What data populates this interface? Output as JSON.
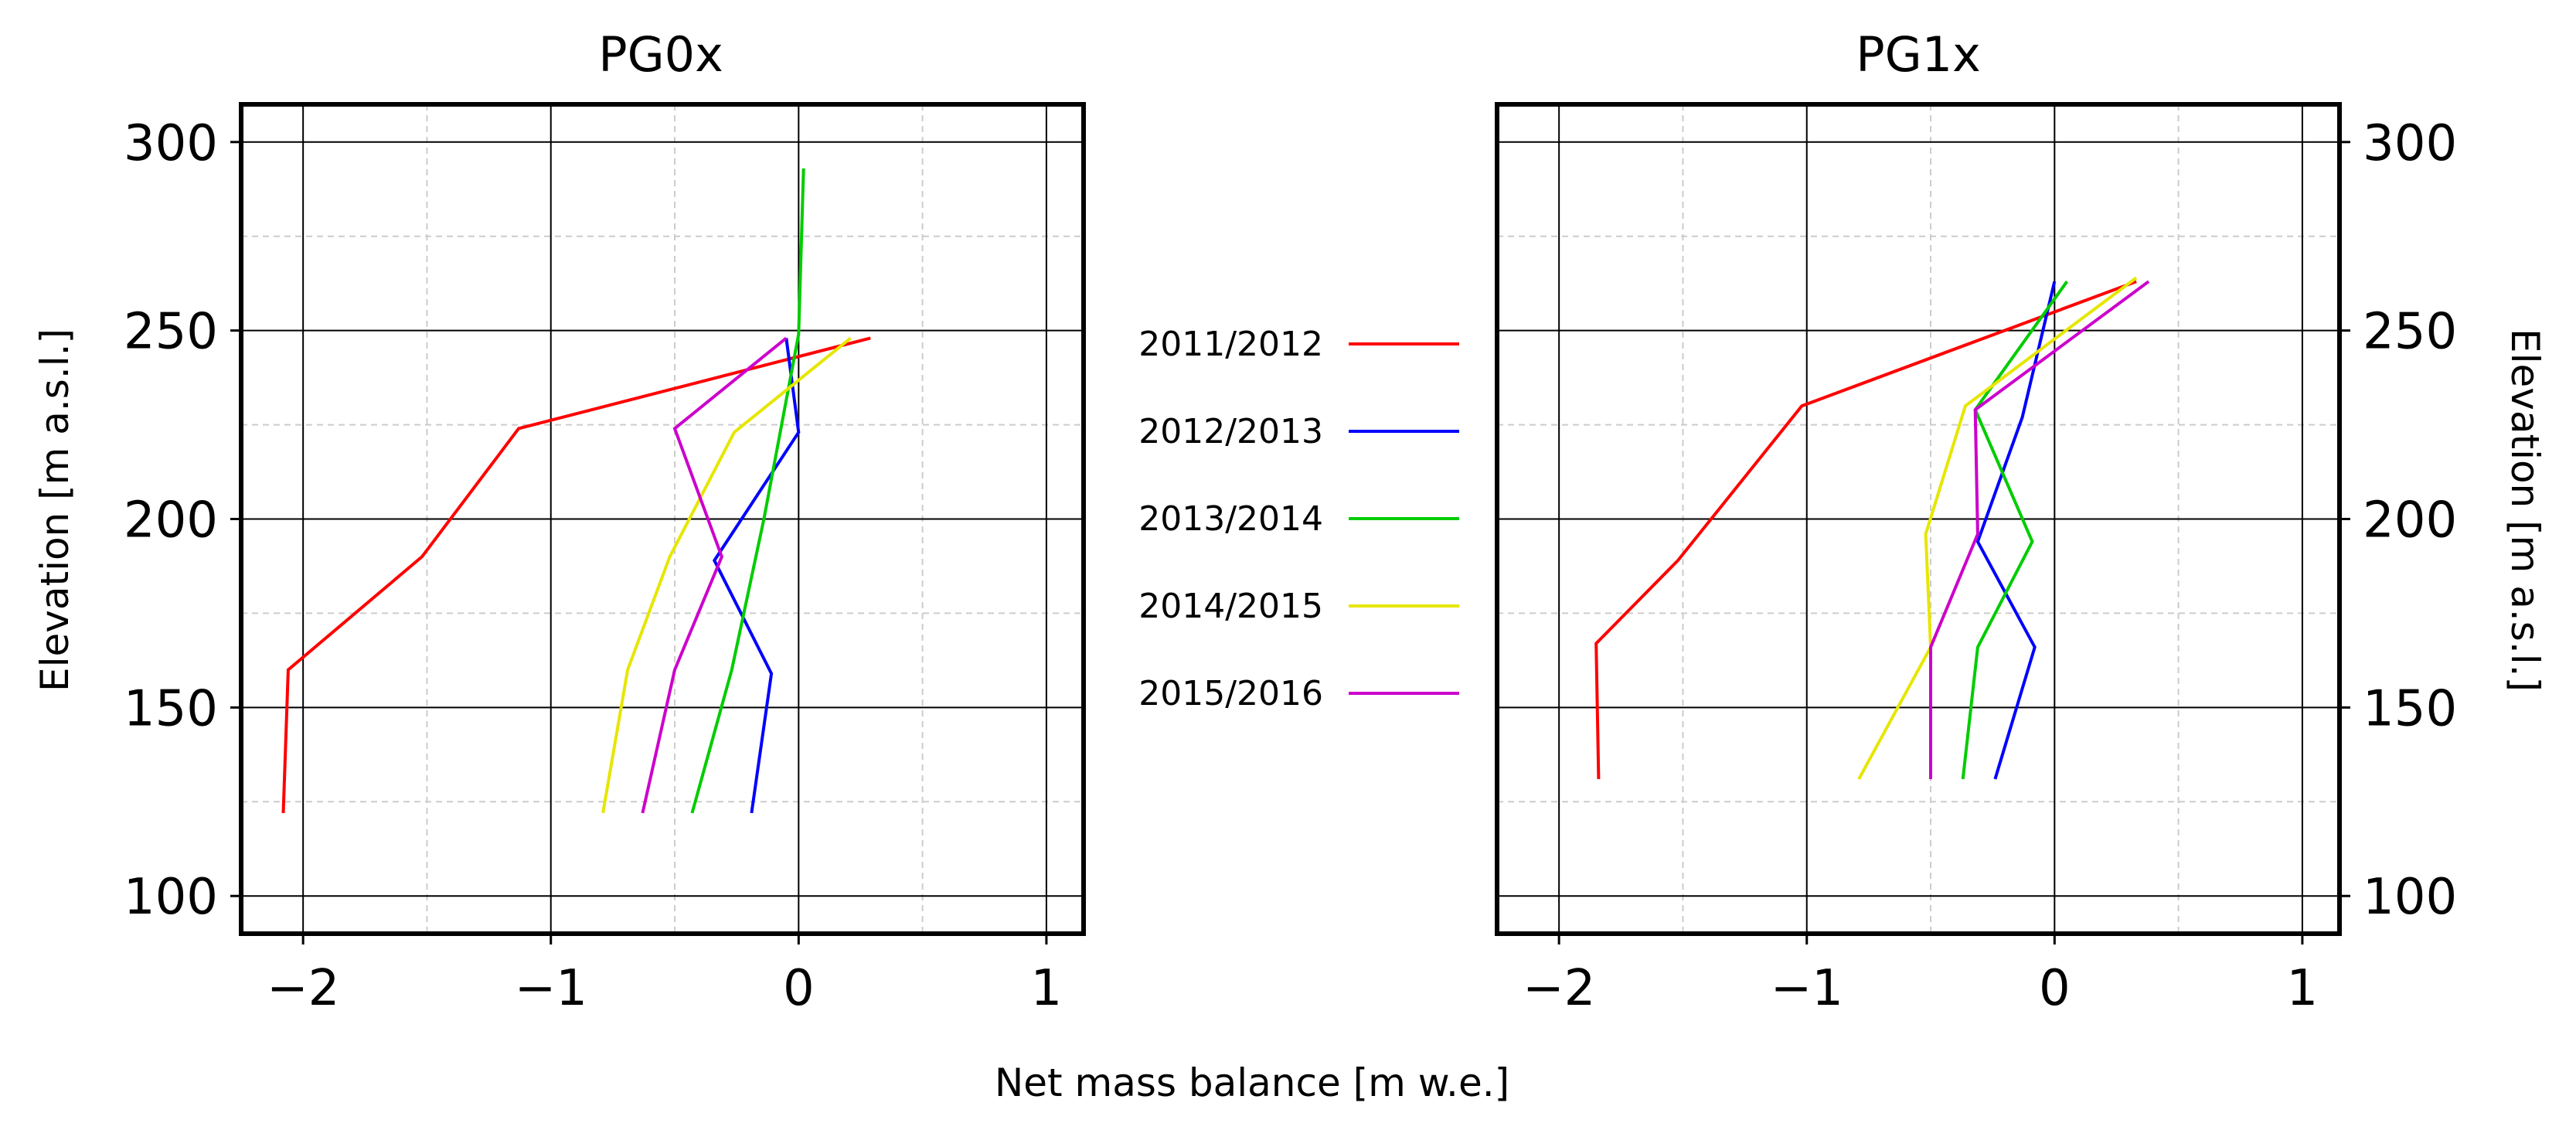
{
  "chart_data": [
    {
      "type": "line",
      "title": "PG0x",
      "xlabel": "Net mass balance [m w.e.]",
      "ylabel": "Elevation [m a.s.l.]",
      "xlim": [
        -2.25,
        1.15
      ],
      "ylim": [
        90,
        310
      ],
      "xticks": [
        -2,
        -1,
        0,
        1
      ],
      "xtick_labels": [
        "−2",
        "−1",
        "0",
        "1"
      ],
      "yticks": [
        100,
        150,
        200,
        250,
        300
      ],
      "ytick_labels": [
        "100",
        "150",
        "200",
        "250",
        "300"
      ],
      "y_axis_side": "left",
      "grid": "major solid, minor dashed",
      "series": [
        {
          "name": "2011/2012",
          "color": "#ff0000",
          "x": [
            -2.08,
            -2.06,
            -1.52,
            -1.13,
            0.29
          ],
          "y": [
            122,
            160,
            190,
            224,
            248
          ]
        },
        {
          "name": "2012/2013",
          "color": "#0000ff",
          "x": [
            -0.19,
            -0.11,
            -0.34,
            0.0,
            -0.05
          ],
          "y": [
            122,
            159,
            189,
            223,
            248
          ]
        },
        {
          "name": "2013/2014",
          "color": "#00cc00",
          "x": [
            -0.43,
            -0.27,
            -0.14,
            0.0,
            0.02
          ],
          "y": [
            122,
            160,
            200,
            249,
            293
          ]
        },
        {
          "name": "2014/2015",
          "color": "#e6e600",
          "x": [
            -0.79,
            -0.69,
            -0.52,
            -0.26,
            0.21
          ],
          "y": [
            122,
            160,
            190,
            223,
            248
          ]
        },
        {
          "name": "2015/2016",
          "color": "#cc00cc",
          "x": [
            -0.63,
            -0.5,
            -0.31,
            -0.5,
            -0.05
          ],
          "y": [
            122,
            160,
            190,
            224,
            248
          ]
        }
      ]
    },
    {
      "type": "line",
      "title": "PG1x",
      "xlabel": "Net mass balance [m w.e.]",
      "ylabel": "Elevation [m a.s.l.]",
      "xlim": [
        -2.25,
        1.15
      ],
      "ylim": [
        90,
        310
      ],
      "xticks": [
        -2,
        -1,
        0,
        1
      ],
      "xtick_labels": [
        "−2",
        "−1",
        "0",
        "1"
      ],
      "yticks": [
        100,
        150,
        200,
        250,
        300
      ],
      "ytick_labels": [
        "100",
        "150",
        "200",
        "250",
        "300"
      ],
      "y_axis_side": "right",
      "grid": "major solid, minor dashed",
      "series": [
        {
          "name": "2011/2012",
          "color": "#ff0000",
          "x": [
            -1.84,
            -1.85,
            -1.52,
            -1.02,
            0.33
          ],
          "y": [
            131,
            167,
            189,
            230,
            263
          ]
        },
        {
          "name": "2012/2013",
          "color": "#0000ff",
          "x": [
            -0.24,
            -0.08,
            -0.31,
            -0.13,
            0.0
          ],
          "y": [
            131,
            166,
            194,
            227,
            263
          ]
        },
        {
          "name": "2013/2014",
          "color": "#00cc00",
          "x": [
            -0.37,
            -0.31,
            -0.09,
            -0.32,
            0.05
          ],
          "y": [
            131,
            166,
            194,
            229,
            263
          ]
        },
        {
          "name": "2014/2015",
          "color": "#e6e600",
          "x": [
            -0.79,
            -0.5,
            -0.52,
            -0.36,
            0.33
          ],
          "y": [
            131,
            166,
            196,
            230,
            264
          ]
        },
        {
          "name": "2015/2016",
          "color": "#cc00cc",
          "x": [
            -0.5,
            -0.5,
            -0.31,
            -0.32,
            0.38
          ],
          "y": [
            131,
            166,
            196,
            229,
            263
          ]
        }
      ]
    }
  ],
  "legend": {
    "placement": "center, between panels",
    "entries": [
      {
        "label": "2011/2012",
        "color": "#ff0000"
      },
      {
        "label": "2012/2013",
        "color": "#0000ff"
      },
      {
        "label": "2013/2014",
        "color": "#00cc00"
      },
      {
        "label": "2014/2015",
        "color": "#e6e600"
      },
      {
        "label": "2015/2016",
        "color": "#cc00cc"
      }
    ]
  },
  "shared_xlabel": "Net mass balance [m w.e.]",
  "left_ylabel": "Elevation [m a.s.l.]",
  "right_ylabel": "Elevation [m a.s.l.]"
}
